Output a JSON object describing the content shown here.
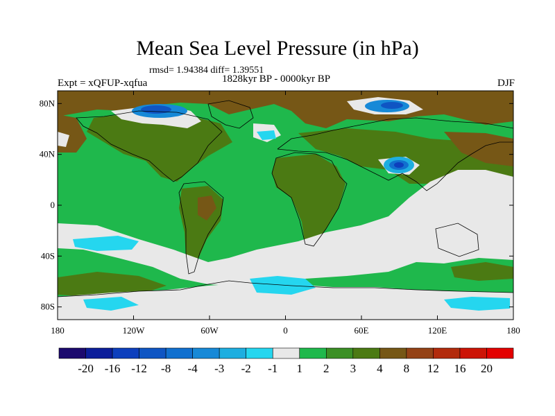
{
  "title": "Mean Sea Level Pressure (in hPa)",
  "stats": "rmsd= 1.94384  diff= 1.39551",
  "period": "1828kyr BP - 0000kyr BP",
  "experiment": "Expt = xQFUP-xqfua",
  "season": "DJF",
  "map": {
    "lat_ticks": [
      "80N",
      "40N",
      "0",
      "40S",
      "80S"
    ],
    "lat_values": [
      80,
      40,
      0,
      -40,
      -80
    ],
    "lon_ticks": [
      "180",
      "120W",
      "60W",
      "0",
      "60E",
      "120E",
      "180"
    ],
    "lon_values": [
      -180,
      -120,
      -60,
      0,
      60,
      120,
      180
    ],
    "lat_range": [
      -90,
      90
    ],
    "lon_range": [
      -180,
      180
    ]
  },
  "colorbar": {
    "labels": [
      "-20",
      "-16",
      "-12",
      "-8",
      "-4",
      "-3",
      "-2",
      "-1",
      "1",
      "2",
      "3",
      "4",
      "8",
      "12",
      "16",
      "20"
    ],
    "colors": [
      "#1c0a6e",
      "#0c1e9a",
      "#0d3fbd",
      "#0f55c3",
      "#1170cf",
      "#1789d7",
      "#1eaee0",
      "#25d6ef",
      "#e8e8e8",
      "#1fb84c",
      "#3b8f25",
      "#4b7a13",
      "#765716",
      "#944216",
      "#b22b0c",
      "#cc1406",
      "#e30000"
    ]
  },
  "colors": {
    "ocean_base": "#1fb84c",
    "neutral": "#e8e8e8",
    "land_positive": "#4b7a13",
    "high_positive": "#765716",
    "coastline": "#000000"
  }
}
